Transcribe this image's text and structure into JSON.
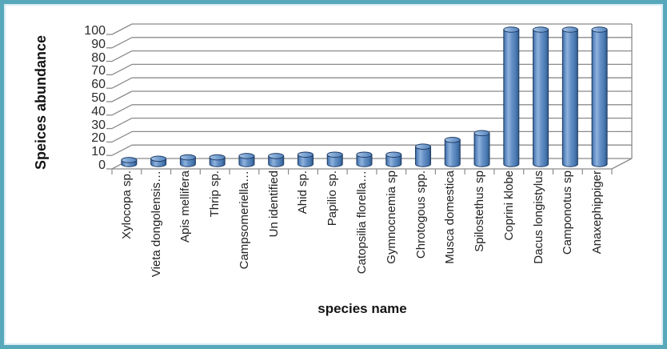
{
  "frame": {
    "border_color": "#58a8bc",
    "inner_edge_color": "#d9ecf1",
    "background": "#ffffff"
  },
  "chart_data": {
    "type": "bar",
    "style": "3d-cylinder",
    "title": "",
    "xlabel": "species name",
    "ylabel": "Speices abundance",
    "ylim": [
      0,
      100
    ],
    "yticks": [
      0,
      10,
      20,
      30,
      40,
      50,
      60,
      70,
      80,
      90,
      100
    ],
    "grid": true,
    "legend": "none",
    "bar_color": "#4F81BD",
    "bar_outline_color": "#1F3D66",
    "gridline_color": "#8b8b8b",
    "categories": [
      "Xylocopa sp.",
      "Vieta dongolensis…",
      "Apis mellifera",
      "Thrip sp.",
      "Campsomeriella…",
      "Un identified",
      "Ahid sp.",
      "Papilio sp.",
      "Catopsilia florella…",
      "Gymnocnemia sp",
      "Chrotogous spp.",
      "Musca domestica",
      "Spilostethus sp",
      "Coprini klobe",
      "Dacus longistylus",
      "Camponotus sp",
      "Anaxephippiger"
    ],
    "values": [
      3,
      4,
      5,
      5,
      6,
      6,
      7,
      7,
      7,
      7,
      13,
      18,
      23,
      100,
      100,
      100,
      100
    ]
  }
}
